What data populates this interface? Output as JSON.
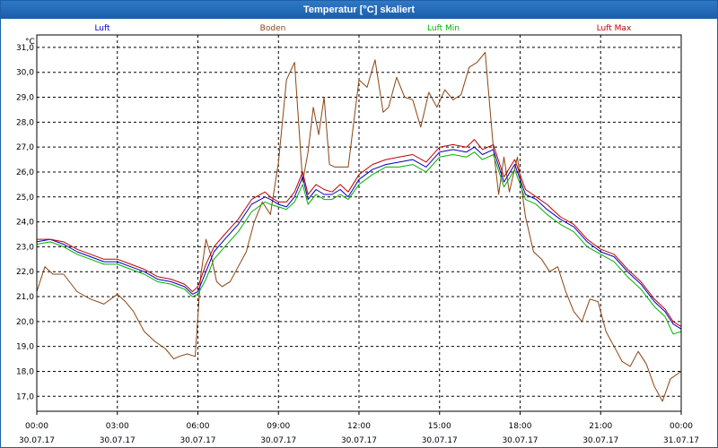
{
  "window": {
    "title": "Temperatur [°C] skaliert"
  },
  "chart_data": {
    "type": "line",
    "title": "Temperatur [°C] skaliert",
    "ylabel": "°C",
    "xlabel": "",
    "ylim": [
      16.4,
      31.5
    ],
    "xlim": [
      0,
      24
    ],
    "y_ticks": [
      17.0,
      18.0,
      19.0,
      20.0,
      21.0,
      22.0,
      23.0,
      24.0,
      25.0,
      26.0,
      27.0,
      28.0,
      29.0,
      30.0,
      31.0
    ],
    "y_tick_labels": [
      "17,0",
      "18,0",
      "19,0",
      "20,0",
      "21,0",
      "22,0",
      "23,0",
      "24,0",
      "25,0",
      "26,0",
      "27,0",
      "28,0",
      "29,0",
      "30,0",
      "31,0"
    ],
    "x_ticks": [
      {
        "h": 0,
        "time": "00:00",
        "date": "30.07.17"
      },
      {
        "h": 3,
        "time": "03:00",
        "date": "30.07.17"
      },
      {
        "h": 6,
        "time": "06:00",
        "date": "30.07.17"
      },
      {
        "h": 9,
        "time": "09:00",
        "date": "30.07.17"
      },
      {
        "h": 12,
        "time": "12:00",
        "date": "30.07.17"
      },
      {
        "h": 15,
        "time": "15:00",
        "date": "30.07.17"
      },
      {
        "h": 18,
        "time": "18:00",
        "date": "30.07.17"
      },
      {
        "h": 21,
        "time": "21:00",
        "date": "30.07.17"
      },
      {
        "h": 24,
        "time": "00:00",
        "date": "31.07.17"
      }
    ],
    "grid": true,
    "legend_position": "top",
    "series": [
      {
        "name": "Luft",
        "color": "#0000c0",
        "x": [
          0,
          0.5,
          1,
          1.5,
          2,
          2.5,
          3,
          3.5,
          4,
          4.5,
          5,
          5.5,
          5.8,
          6,
          6.3,
          6.6,
          7,
          7.5,
          8,
          8.5,
          8.7,
          9,
          9.3,
          9.6,
          9.9,
          10.1,
          10.4,
          10.7,
          11,
          11.3,
          11.6,
          12,
          12.5,
          13,
          13.5,
          14,
          14.5,
          15,
          15.5,
          16,
          16.3,
          16.6,
          17,
          17.4,
          17.8,
          18.2,
          18.6,
          19,
          19.5,
          20,
          20.5,
          21,
          21.5,
          22,
          22.5,
          23,
          23.4,
          23.7,
          24
        ],
        "y": [
          23.2,
          23.3,
          23.1,
          22.8,
          22.6,
          22.4,
          22.4,
          22.2,
          22.0,
          21.7,
          21.6,
          21.4,
          21.1,
          21.2,
          22.0,
          22.8,
          23.3,
          23.9,
          24.7,
          25.0,
          24.9,
          24.7,
          24.6,
          25.0,
          25.8,
          24.9,
          25.3,
          25.1,
          25.1,
          25.3,
          25.0,
          25.7,
          26.1,
          26.3,
          26.4,
          26.5,
          26.2,
          26.8,
          26.9,
          26.8,
          27.0,
          26.7,
          26.9,
          25.6,
          26.3,
          25.1,
          24.9,
          24.5,
          24.1,
          23.8,
          23.2,
          22.8,
          22.6,
          22.0,
          21.5,
          20.8,
          20.4,
          19.9,
          19.7
        ]
      },
      {
        "name": "Boden",
        "color": "#8b4513",
        "x": [
          0,
          0.3,
          0.6,
          1,
          1.5,
          2,
          2.5,
          3,
          3.3,
          3.6,
          4,
          4.4,
          4.8,
          5.1,
          5.3,
          5.6,
          5.9,
          6.1,
          6.3,
          6.5,
          6.7,
          6.9,
          7.2,
          7.5,
          7.8,
          8.1,
          8.4,
          8.7,
          9.0,
          9.3,
          9.6,
          9.9,
          10.1,
          10.3,
          10.5,
          10.7,
          10.9,
          11.1,
          11.3,
          11.6,
          12,
          12.3,
          12.6,
          12.9,
          13.1,
          13.4,
          13.7,
          14,
          14.3,
          14.6,
          14.9,
          15.2,
          15.5,
          15.8,
          16.1,
          16.4,
          16.7,
          17.0,
          17.2,
          17.4,
          17.6,
          17.9,
          18.2,
          18.5,
          18.8,
          19.1,
          19.4,
          19.7,
          20,
          20.3,
          20.6,
          20.9,
          21.2,
          21.5,
          21.8,
          22.1,
          22.4,
          22.7,
          23,
          23.3,
          23.6,
          24
        ],
        "y": [
          21.2,
          22.2,
          21.9,
          21.9,
          21.2,
          20.9,
          20.7,
          21.1,
          20.8,
          20.4,
          19.6,
          19.2,
          18.9,
          18.5,
          18.6,
          18.7,
          18.6,
          21.8,
          23.3,
          22.6,
          21.6,
          21.4,
          21.6,
          22.2,
          22.8,
          24.0,
          24.8,
          24.3,
          26.4,
          29.7,
          30.4,
          25.6,
          26.8,
          28.6,
          27.5,
          29.0,
          26.3,
          26.2,
          26.2,
          26.2,
          29.7,
          29.4,
          30.5,
          28.4,
          28.6,
          29.8,
          29.0,
          28.9,
          27.8,
          29.2,
          28.6,
          29.3,
          28.9,
          29.1,
          30.2,
          30.4,
          30.8,
          27.0,
          25.1,
          26.6,
          25.2,
          26.6,
          24.2,
          22.8,
          22.5,
          22.0,
          22.2,
          21.2,
          20.4,
          20.0,
          20.9,
          20.8,
          19.6,
          19.0,
          18.4,
          18.2,
          18.8,
          18.3,
          17.4,
          16.8,
          17.7,
          18.0
        ]
      },
      {
        "name": "Luft Min",
        "color": "#00b000",
        "x": [
          0,
          0.5,
          1,
          1.5,
          2,
          2.5,
          3,
          3.5,
          4,
          4.5,
          5,
          5.5,
          5.8,
          6,
          6.3,
          6.6,
          7,
          7.5,
          8,
          8.5,
          8.7,
          9,
          9.3,
          9.6,
          9.9,
          10.1,
          10.4,
          10.7,
          11,
          11.3,
          11.6,
          12,
          12.5,
          13,
          13.5,
          14,
          14.5,
          15,
          15.5,
          16,
          16.3,
          16.6,
          17,
          17.4,
          17.8,
          18.2,
          18.6,
          19,
          19.5,
          20,
          20.5,
          21,
          21.5,
          22,
          22.5,
          23,
          23.4,
          23.7,
          24
        ],
        "y": [
          23.1,
          23.2,
          23.0,
          22.7,
          22.5,
          22.3,
          22.3,
          22.1,
          21.9,
          21.6,
          21.5,
          21.3,
          21.0,
          21.1,
          21.7,
          22.5,
          23.0,
          23.6,
          24.4,
          24.8,
          24.7,
          24.6,
          24.5,
          24.8,
          25.5,
          24.7,
          25.1,
          24.9,
          24.9,
          25.1,
          24.9,
          25.5,
          25.9,
          26.2,
          26.2,
          26.3,
          26.0,
          26.6,
          26.7,
          26.6,
          26.8,
          26.5,
          26.7,
          25.4,
          26.1,
          24.9,
          24.7,
          24.3,
          23.9,
          23.6,
          23.0,
          22.7,
          22.4,
          21.8,
          21.3,
          20.6,
          20.2,
          19.5,
          19.6
        ]
      },
      {
        "name": "Luft Max",
        "color": "#c00000",
        "x": [
          0,
          0.5,
          1,
          1.5,
          2,
          2.5,
          3,
          3.5,
          4,
          4.5,
          5,
          5.5,
          5.8,
          6,
          6.3,
          6.6,
          7,
          7.5,
          8,
          8.5,
          8.7,
          9,
          9.3,
          9.6,
          9.9,
          10.1,
          10.4,
          10.7,
          11,
          11.3,
          11.6,
          12,
          12.5,
          13,
          13.5,
          14,
          14.5,
          15,
          15.5,
          16,
          16.3,
          16.6,
          17,
          17.4,
          17.8,
          18.2,
          18.6,
          19,
          19.5,
          20,
          20.5,
          21,
          21.5,
          22,
          22.5,
          23,
          23.4,
          23.7,
          24
        ],
        "y": [
          23.3,
          23.3,
          23.2,
          22.9,
          22.7,
          22.5,
          22.5,
          22.3,
          22.1,
          21.8,
          21.7,
          21.5,
          21.2,
          21.4,
          22.3,
          23.0,
          23.5,
          24.1,
          24.9,
          25.2,
          25.0,
          24.8,
          24.8,
          25.2,
          26.0,
          25.1,
          25.5,
          25.3,
          25.2,
          25.5,
          25.2,
          25.9,
          26.3,
          26.5,
          26.6,
          26.7,
          26.4,
          27.0,
          27.1,
          27.0,
          27.3,
          26.9,
          27.1,
          25.8,
          26.5,
          25.3,
          25.0,
          24.7,
          24.2,
          23.9,
          23.3,
          22.9,
          22.7,
          22.1,
          21.6,
          20.9,
          20.5,
          20.0,
          19.8
        ]
      }
    ]
  }
}
